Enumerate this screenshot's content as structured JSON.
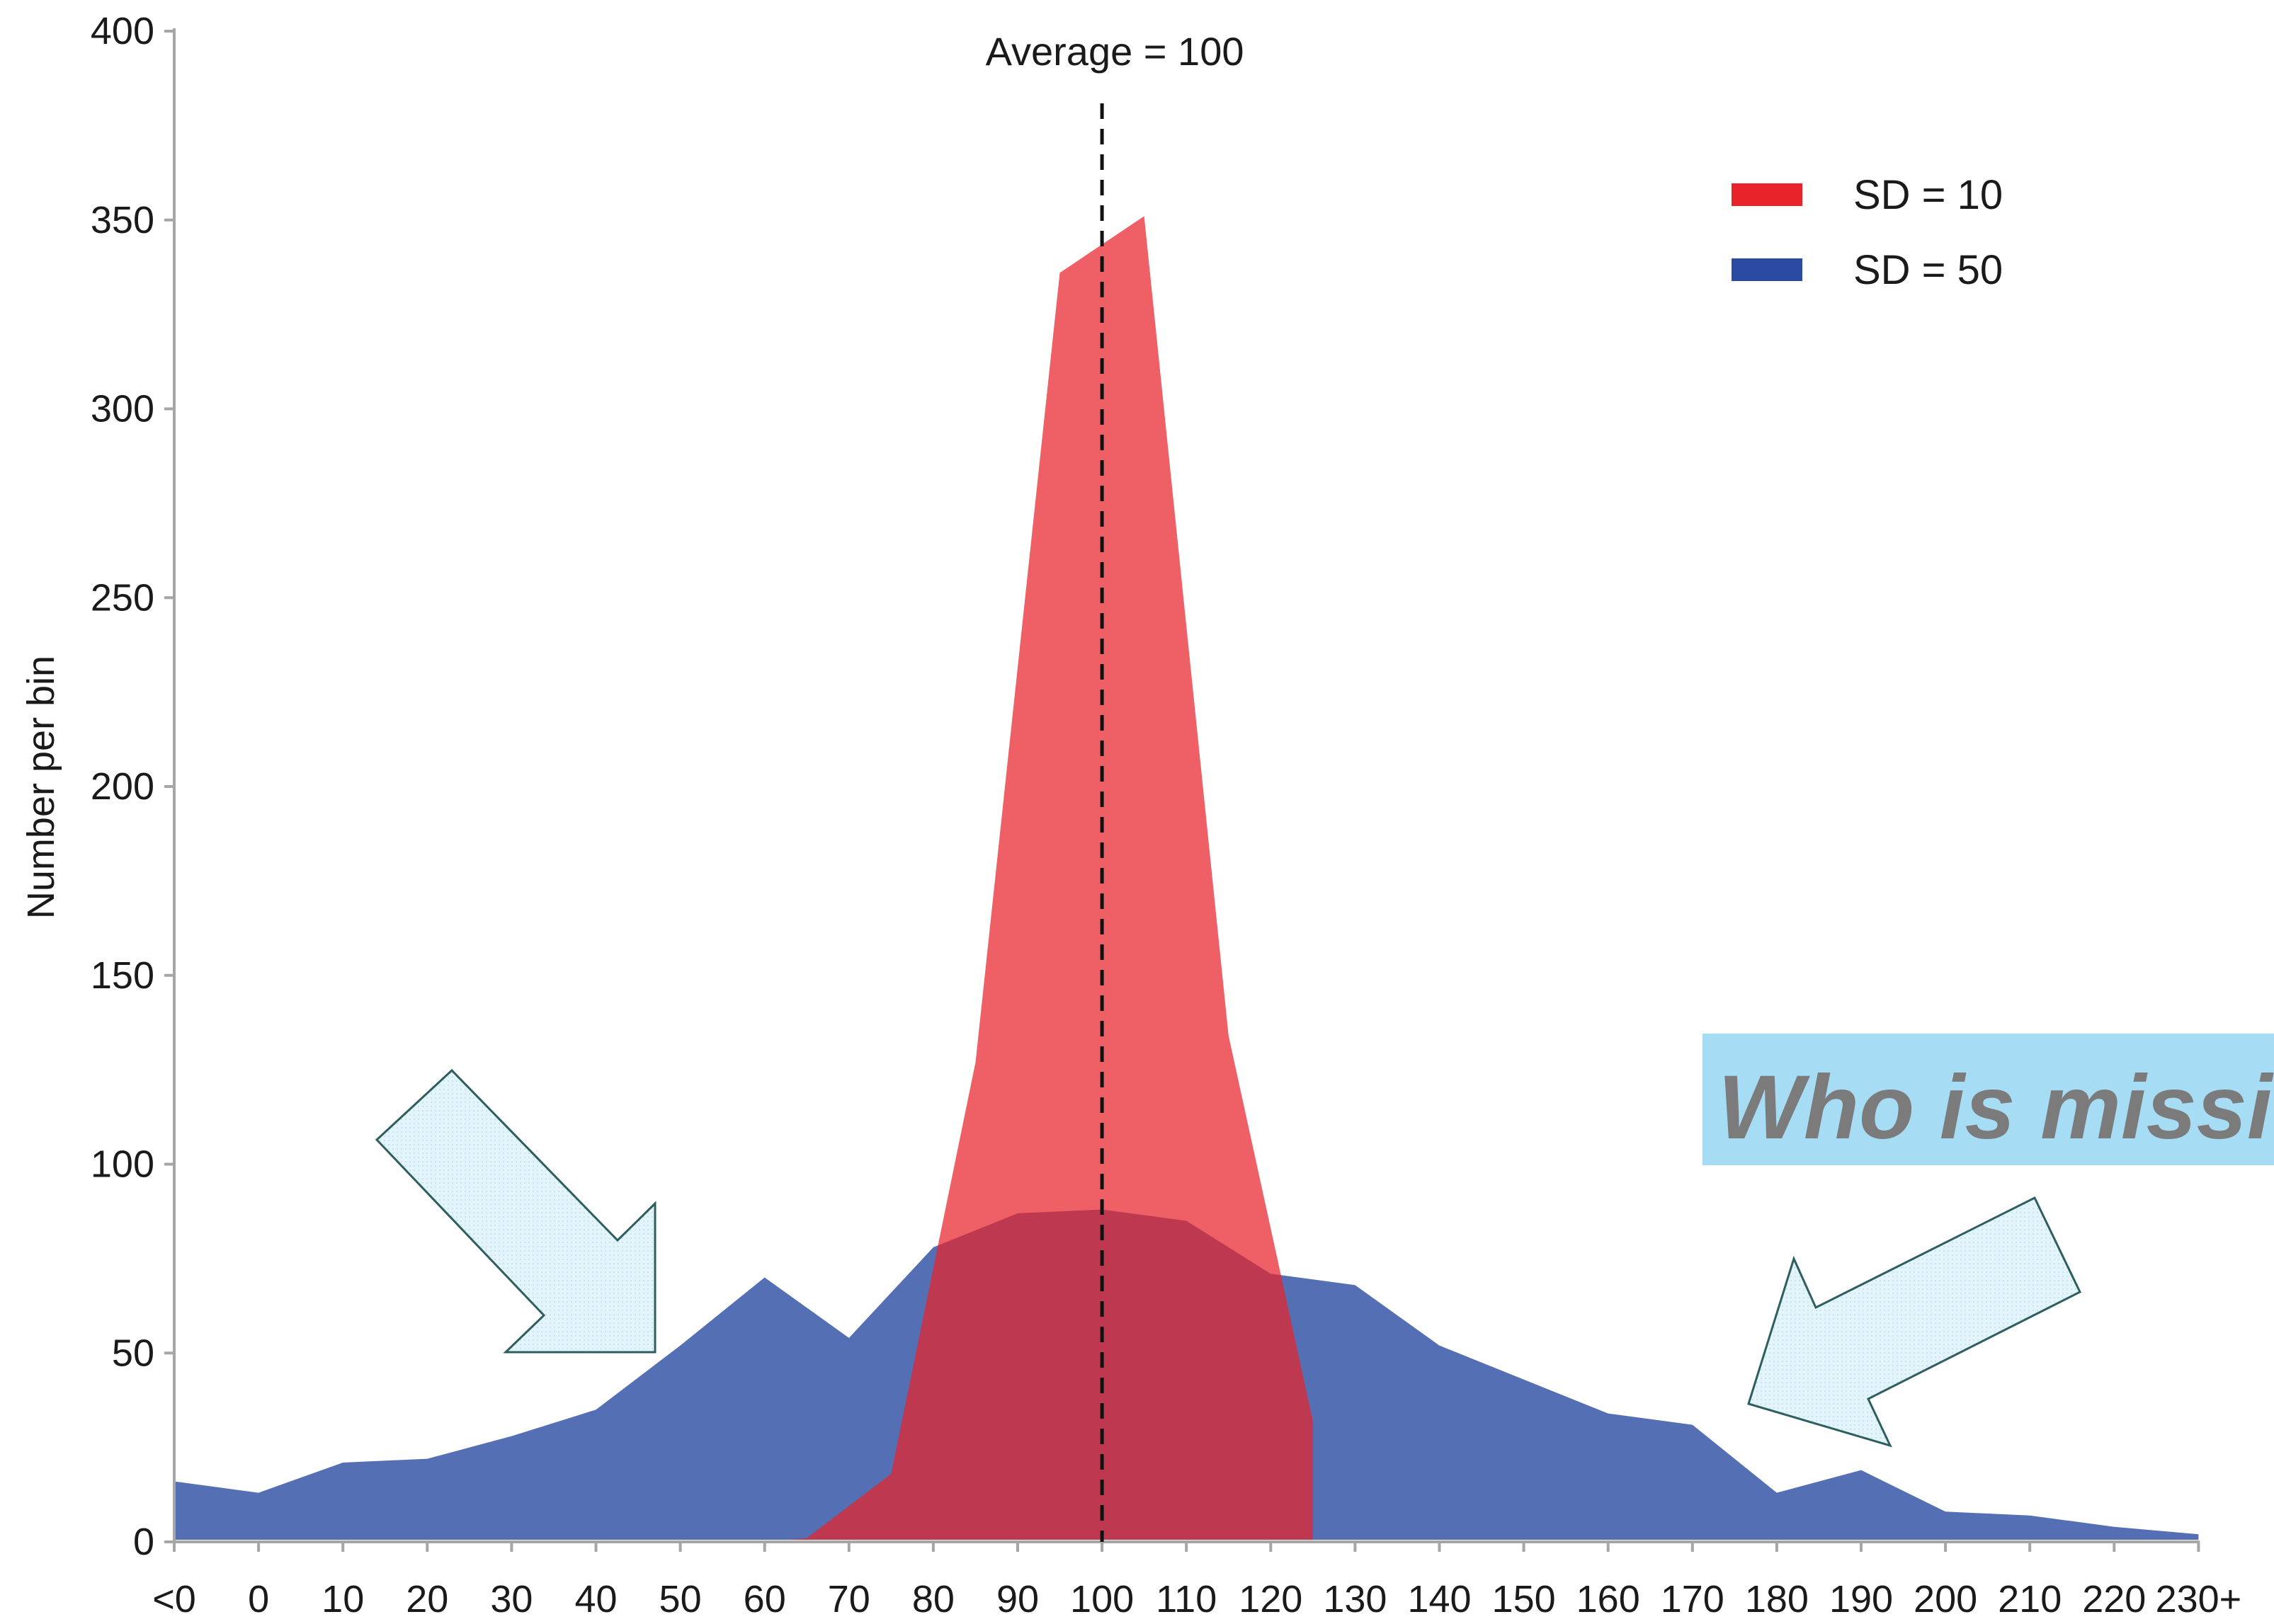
{
  "chart_data": {
    "type": "area",
    "xlabel": "",
    "ylabel": "Number per bin",
    "ylim": [
      0,
      400
    ],
    "yticks": [
      0,
      50,
      100,
      150,
      200,
      250,
      300,
      350,
      400
    ],
    "categories": [
      "<0",
      "0",
      "10",
      "20",
      "30",
      "40",
      "50",
      "60",
      "70",
      "80",
      "90",
      "100",
      "110",
      "120",
      "130",
      "140",
      "150",
      "160",
      "170",
      "180",
      "190",
      "200",
      "210",
      "220",
      "230+"
    ],
    "grid": false,
    "legend_position": "top-right",
    "series": [
      {
        "name": "SD = 50",
        "color": "#2b4ba3",
        "points": [
          {
            "x": -10,
            "y": 16
          },
          {
            "x": 0,
            "y": 13
          },
          {
            "x": 10,
            "y": 21
          },
          {
            "x": 20,
            "y": 22
          },
          {
            "x": 30,
            "y": 28
          },
          {
            "x": 40,
            "y": 35
          },
          {
            "x": 50,
            "y": 52
          },
          {
            "x": 60,
            "y": 70
          },
          {
            "x": 70,
            "y": 54
          },
          {
            "x": 80,
            "y": 78
          },
          {
            "x": 90,
            "y": 87
          },
          {
            "x": 100,
            "y": 88
          },
          {
            "x": 110,
            "y": 85
          },
          {
            "x": 120,
            "y": 71
          },
          {
            "x": 130,
            "y": 68
          },
          {
            "x": 140,
            "y": 52
          },
          {
            "x": 150,
            "y": 43
          },
          {
            "x": 160,
            "y": 34
          },
          {
            "x": 170,
            "y": 31
          },
          {
            "x": 180,
            "y": 13
          },
          {
            "x": 190,
            "y": 19
          },
          {
            "x": 200,
            "y": 8
          },
          {
            "x": 210,
            "y": 7
          },
          {
            "x": 220,
            "y": 4
          },
          {
            "x": 230,
            "y": 2
          }
        ]
      },
      {
        "name": "SD = 10",
        "color": "#e8232a",
        "points": [
          {
            "x": 60,
            "y": 0
          },
          {
            "x": 65,
            "y": 1
          },
          {
            "x": 75,
            "y": 18
          },
          {
            "x": 85,
            "y": 127
          },
          {
            "x": 95,
            "y": 336
          },
          {
            "x": 105,
            "y": 351
          },
          {
            "x": 115,
            "y": 134
          },
          {
            "x": 125,
            "y": 32
          },
          {
            "x": 125,
            "y": 0
          }
        ]
      }
    ],
    "annotations": [
      {
        "label": "Average = 100",
        "x": 100,
        "style": "dashed-line"
      },
      {
        "label": "Who is missi",
        "style": "callout-box"
      }
    ]
  },
  "colors": {
    "sd10_fill": "#e8232a",
    "sd50_fill": "#2b4ba3",
    "overlap_fill": "#b8344f",
    "axis": "#a6a6a6",
    "callout_bg": "#a6dcf4",
    "callout_text": "#7b7b7b",
    "arrow_fill": "#e4f4fb",
    "arrow_stroke": "#2f5e5e"
  }
}
